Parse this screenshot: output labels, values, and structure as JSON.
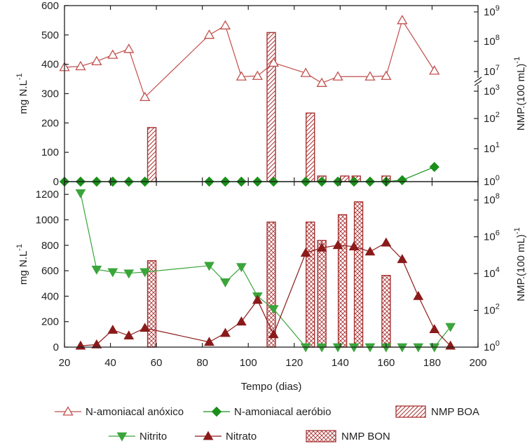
{
  "colors": {
    "anoxic": "#c0504d",
    "aerobic": "#1a8f1a",
    "nitrite": "#3aa53a",
    "nitrate": "#8b1a1a",
    "boa": "#a83232",
    "bon": "#a83232",
    "axis": "#222222"
  },
  "chart_data": [
    {
      "id": "top",
      "type": "line",
      "xlabel": "Tempo (dias)",
      "xlim": [
        20,
        200
      ],
      "xticks": [
        20,
        40,
        60,
        80,
        100,
        120,
        140,
        160,
        180,
        200
      ],
      "ylabel_left": {
        "base": "mg N.L",
        "sup": "-1"
      },
      "ylim_left": [
        0,
        600
      ],
      "yticks_left": [
        0,
        100,
        200,
        300,
        400,
        500,
        600
      ],
      "ylabel_right": {
        "base": "NMP.(100 mL)",
        "sup": "-1"
      },
      "yticks_right": [
        {
          "base": "10",
          "exp": "0",
          "value": 0
        },
        {
          "base": "10",
          "exp": "1",
          "value": 1
        },
        {
          "base": "10",
          "exp": "2",
          "value": 2
        },
        {
          "base": "10",
          "exp": "3",
          "value": 3
        },
        {
          "base": "10",
          "exp": "7",
          "value": 7
        },
        {
          "base": "10",
          "exp": "8",
          "value": 8
        },
        {
          "base": "10",
          "exp": "9",
          "value": 9
        }
      ],
      "right_axis_break": {
        "between_exponents": [
          3,
          7
        ]
      },
      "series": [
        {
          "name": "N-amoniacal anóxico",
          "marker": "triangle-up-open",
          "x": [
            20,
            27,
            34,
            41,
            48,
            55,
            83,
            90,
            97,
            104,
            111,
            125,
            132,
            139,
            153,
            160,
            167,
            181
          ],
          "y": [
            390,
            393,
            410,
            432,
            452,
            288,
            500,
            532,
            358,
            360,
            405,
            370,
            336,
            358,
            358,
            360,
            550,
            378
          ]
        },
        {
          "name": "N-amoniacal aeróbio",
          "marker": "diamond-filled",
          "x": [
            20,
            27,
            34,
            41,
            48,
            55,
            83,
            90,
            97,
            104,
            111,
            125,
            132,
            139,
            146,
            153,
            160,
            167,
            181
          ],
          "y": [
            0,
            0,
            0,
            0,
            0,
            0,
            0,
            0,
            0,
            0,
            0,
            0,
            0,
            0,
            0,
            0,
            0,
            5,
            50
          ]
        }
      ],
      "bars": {
        "name": "NMP BOA",
        "pattern": "hatch",
        "x": [
          58,
          110,
          127,
          132,
          142,
          147,
          160
        ],
        "log10_values": [
          1.7,
          8.3,
          2.2,
          0.17,
          0.17,
          0.17,
          0.17
        ]
      }
    },
    {
      "id": "bottom",
      "type": "line",
      "xlabel": "Tempo (dias)",
      "xlim": [
        20,
        200
      ],
      "xticks": [
        20,
        40,
        60,
        80,
        100,
        120,
        140,
        160,
        180,
        200
      ],
      "ylabel_left": {
        "base": "mg N.L",
        "sup": "-1"
      },
      "ylim_left": [
        0,
        1300
      ],
      "yticks_left": [
        0,
        200,
        400,
        600,
        800,
        1000,
        1200
      ],
      "ylabel_right": {
        "base": "NMP.(100 mL)",
        "sup": "-1"
      },
      "yticks_right": [
        {
          "base": "10",
          "exp": "0",
          "value": 0
        },
        {
          "base": "10",
          "exp": "2",
          "value": 2
        },
        {
          "base": "10",
          "exp": "4",
          "value": 4
        },
        {
          "base": "10",
          "exp": "6",
          "value": 6
        },
        {
          "base": "10",
          "exp": "8",
          "value": 8
        }
      ],
      "series": [
        {
          "name": "Nitrito",
          "marker": "triangle-down-filled",
          "x": [
            27,
            34,
            41,
            48,
            55,
            83,
            90,
            97,
            104,
            111,
            125,
            132,
            139,
            146,
            153,
            160,
            167,
            174,
            181,
            188
          ],
          "y": [
            1210,
            610,
            590,
            580,
            590,
            640,
            510,
            630,
            400,
            300,
            0,
            0,
            0,
            0,
            0,
            0,
            0,
            0,
            0,
            160
          ]
        },
        {
          "name": "Nitrato",
          "marker": "triangle-up-filled",
          "x": [
            27,
            34,
            41,
            48,
            55,
            83,
            90,
            97,
            104,
            111,
            125,
            132,
            139,
            146,
            153,
            160,
            167,
            174,
            181,
            188
          ],
          "y": [
            10,
            20,
            135,
            90,
            150,
            40,
            110,
            200,
            370,
            100,
            740,
            780,
            800,
            790,
            750,
            820,
            690,
            400,
            140,
            10
          ]
        }
      ],
      "bars": {
        "name": "NMP BON",
        "pattern": "crosshatch",
        "x": [
          58,
          110,
          127,
          132,
          141,
          148,
          160
        ],
        "log10_values": [
          4.7,
          6.8,
          6.8,
          5.8,
          7.2,
          7.9,
          3.9
        ]
      }
    }
  ],
  "legend": {
    "items": [
      {
        "label": "N-amoniacal anóxico",
        "type": "line",
        "marker": "triangle-up-open",
        "color": "#c0504d"
      },
      {
        "label": "N-amoniacal aeróbio",
        "type": "line",
        "marker": "diamond-filled",
        "color": "#1a8f1a"
      },
      {
        "label": "NMP BOA",
        "type": "bar",
        "pattern": "hatch",
        "color": "#a83232"
      },
      {
        "label": "Nitrito",
        "type": "line",
        "marker": "triangle-down-filled",
        "color": "#3aa53a"
      },
      {
        "label": "Nitrato",
        "type": "line",
        "marker": "triangle-up-filled",
        "color": "#8b1a1a"
      },
      {
        "label": "NMP BON",
        "type": "bar",
        "pattern": "crosshatch",
        "color": "#a83232"
      }
    ]
  }
}
